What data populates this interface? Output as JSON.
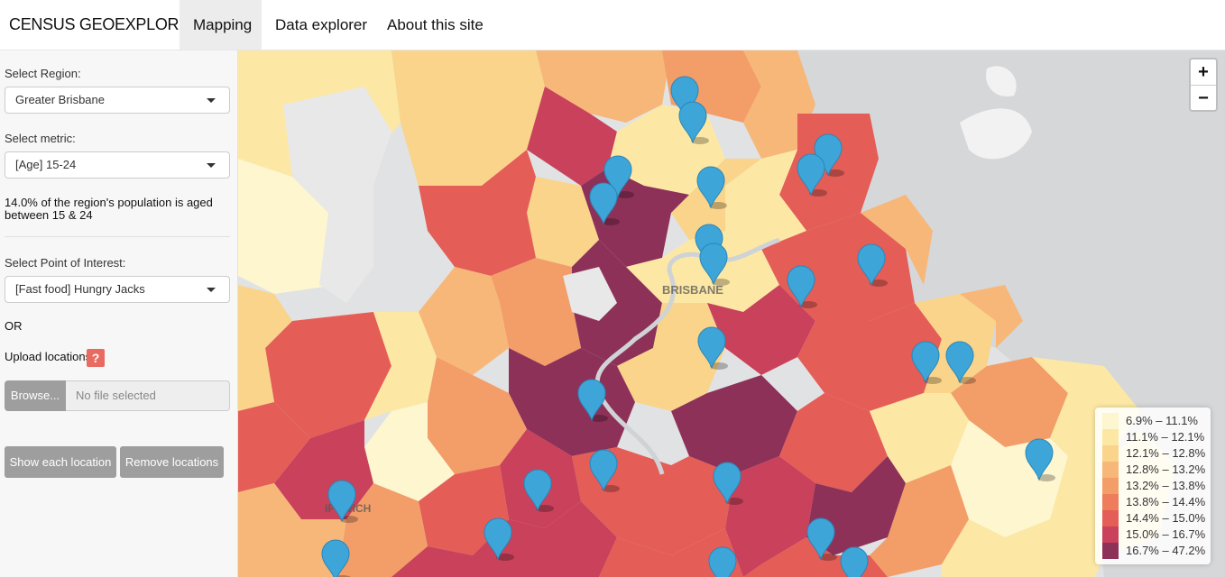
{
  "navbar": {
    "brand": "CENSUS GEOEXPLORER",
    "tabs": [
      {
        "label": "Mapping",
        "active": true
      },
      {
        "label": "Data explorer",
        "active": false
      },
      {
        "label": "About this site",
        "active": false
      }
    ]
  },
  "sidebar": {
    "region_label": "Select Region:",
    "region_value": "Greater Brisbane",
    "metric_label": "Select metric:",
    "metric_value": "[Age] 15-24",
    "summary_text": "14.0% of the region's population is aged between 15 & 24",
    "poi_label": "Select Point of Interest:",
    "poi_value": "[Fast food] Hungry Jacks",
    "or_text": "OR",
    "upload_label": "Upload locations",
    "help_glyph": "?",
    "browse_label": "Browse...",
    "file_placeholder": "No file selected",
    "show_button": "Show each location",
    "remove_button": "Remove locations"
  },
  "map": {
    "city_labels": [
      "BRISBANE",
      "IPSWICH"
    ],
    "zoom_in": "+",
    "zoom_out": "−",
    "legend": [
      {
        "range": "6.9% – 11.1%",
        "color": "#fdf6cf"
      },
      {
        "range": "11.1% – 12.1%",
        "color": "#fce8a4"
      },
      {
        "range": "12.1% – 12.8%",
        "color": "#f9d48a"
      },
      {
        "range": "12.8% – 13.2%",
        "color": "#f7b779"
      },
      {
        "range": "13.2% – 13.8%",
        "color": "#f39d68"
      },
      {
        "range": "13.8% – 14.4%",
        "color": "#ee7d5c"
      },
      {
        "range": "14.4% – 15.0%",
        "color": "#e45d57"
      },
      {
        "range": "15.0% – 16.7%",
        "color": "#c9415a"
      },
      {
        "range": "16.7% – 47.2%",
        "color": "#8e3159"
      }
    ],
    "marker_color": "#3ea5d9"
  }
}
